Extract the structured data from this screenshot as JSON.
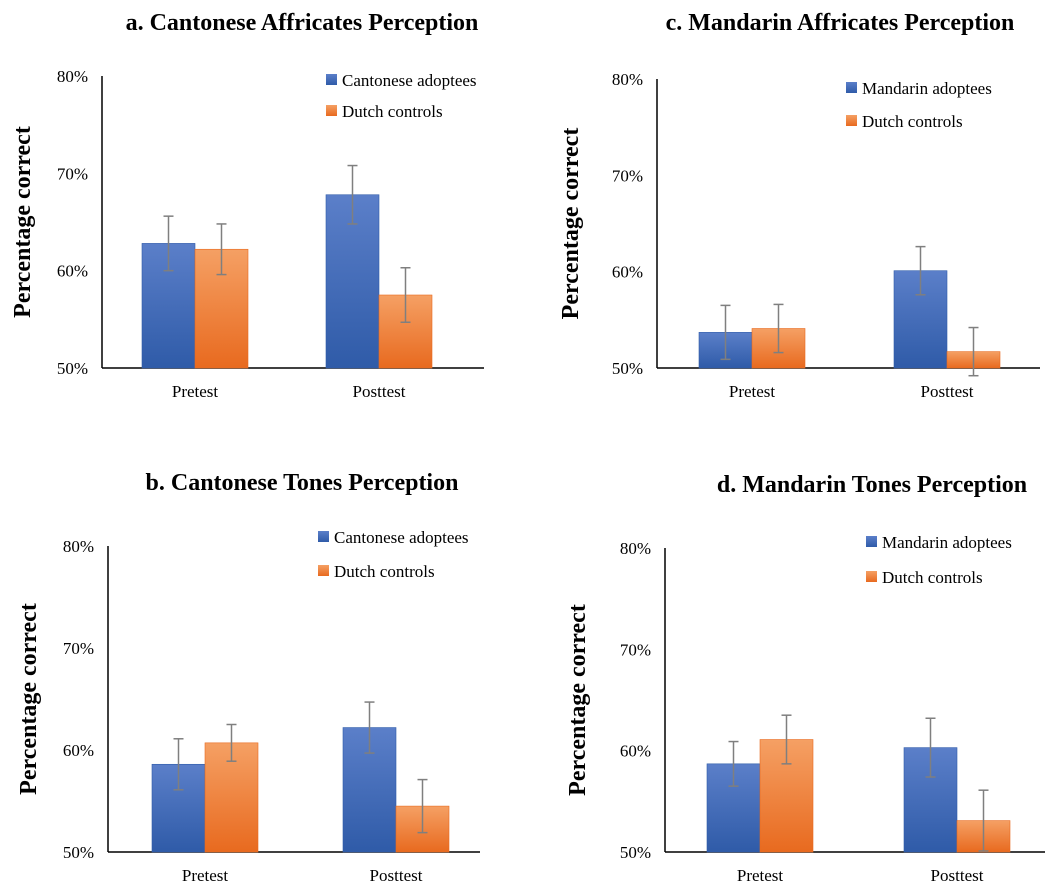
{
  "colors": {
    "adoptees_top": "#5b7fc9",
    "adoptees_bottom": "#2f5ba8",
    "controls_top": "#f5a064",
    "controls_bottom": "#e86a1f",
    "error_bar": "#7f7f7f"
  },
  "chart_data": [
    {
      "type": "bar",
      "title": "a. Cantonese Affricates Perception",
      "ylabel": "Percentage correct",
      "ylim": [
        50,
        80
      ],
      "yticks": [
        "50%",
        "60%",
        "70%",
        "80%"
      ],
      "categories": [
        "Pretest",
        "Posttest"
      ],
      "legend_position": "top-right",
      "series": [
        {
          "name": "Cantonese adoptees",
          "values": [
            62.8,
            67.8
          ],
          "errors": [
            2.8,
            3.0
          ]
        },
        {
          "name": "Dutch controls",
          "values": [
            62.2,
            57.5
          ],
          "errors": [
            2.6,
            2.8
          ]
        }
      ]
    },
    {
      "type": "bar",
      "title": "c. Mandarin Affricates Perception",
      "ylabel": "Percentage correct",
      "ylim": [
        50,
        80
      ],
      "yticks": [
        "50%",
        "60%",
        "70%",
        "80%"
      ],
      "categories": [
        "Pretest",
        "Posttest"
      ],
      "legend_position": "top-right",
      "series": [
        {
          "name": "Mandarin adoptees",
          "values": [
            53.7,
            60.1
          ],
          "errors": [
            2.8,
            2.5
          ]
        },
        {
          "name": "Dutch controls",
          "values": [
            54.1,
            51.7
          ],
          "errors": [
            2.5,
            2.5
          ]
        }
      ]
    },
    {
      "type": "bar",
      "title": "b. Cantonese Tones Perception",
      "ylabel": "Percentage correct",
      "ylim": [
        50,
        80
      ],
      "yticks": [
        "50%",
        "60%",
        "70%",
        "80%"
      ],
      "categories": [
        "Pretest",
        "Posttest"
      ],
      "legend_position": "top-right",
      "series": [
        {
          "name": "Cantonese adoptees",
          "values": [
            58.6,
            62.2
          ],
          "errors": [
            2.5,
            2.5
          ]
        },
        {
          "name": "Dutch controls",
          "values": [
            60.7,
            54.5
          ],
          "errors": [
            1.8,
            2.6
          ]
        }
      ]
    },
    {
      "type": "bar",
      "title": "d. Mandarin Tones Perception",
      "ylabel": "Percentage correct",
      "ylim": [
        50,
        80
      ],
      "yticks": [
        "50%",
        "60%",
        "70%",
        "80%"
      ],
      "categories": [
        "Pretest",
        "Posttest"
      ],
      "legend_position": "top-right",
      "series": [
        {
          "name": "Mandarin adoptees",
          "values": [
            58.7,
            60.3
          ],
          "errors": [
            2.2,
            2.9
          ]
        },
        {
          "name": "Dutch controls",
          "values": [
            61.1,
            53.1
          ],
          "errors": [
            2.4,
            3.0
          ]
        }
      ]
    }
  ]
}
